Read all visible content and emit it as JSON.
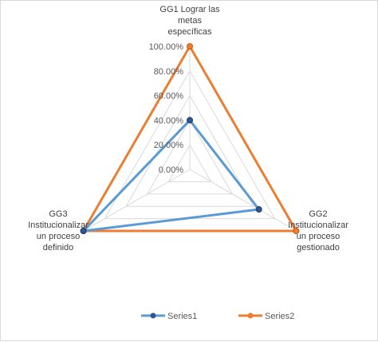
{
  "chart_data": {
    "type": "radar",
    "categories": [
      [
        "GG1 Lograr las",
        "metas",
        "específicas"
      ],
      [
        "GG2",
        "Institucionalizar",
        "un proceso",
        "gestionado"
      ],
      [
        "GG3",
        "Institucionalizar",
        "un proceso",
        "definido"
      ]
    ],
    "series": [
      {
        "name": "Series1",
        "values": [
          0.4,
          0.65,
          1.0
        ],
        "color": "#5b9bd5"
      },
      {
        "name": "Series2",
        "values": [
          1.0,
          1.0,
          1.0
        ],
        "color": "#ed7d31"
      }
    ],
    "rlim": [
      0,
      1
    ],
    "ticks": [
      "0.00%",
      "20.00%",
      "40.00%",
      "60.00%",
      "80.00%",
      "100.00%"
    ],
    "grid": true,
    "legend_position": "bottom"
  }
}
